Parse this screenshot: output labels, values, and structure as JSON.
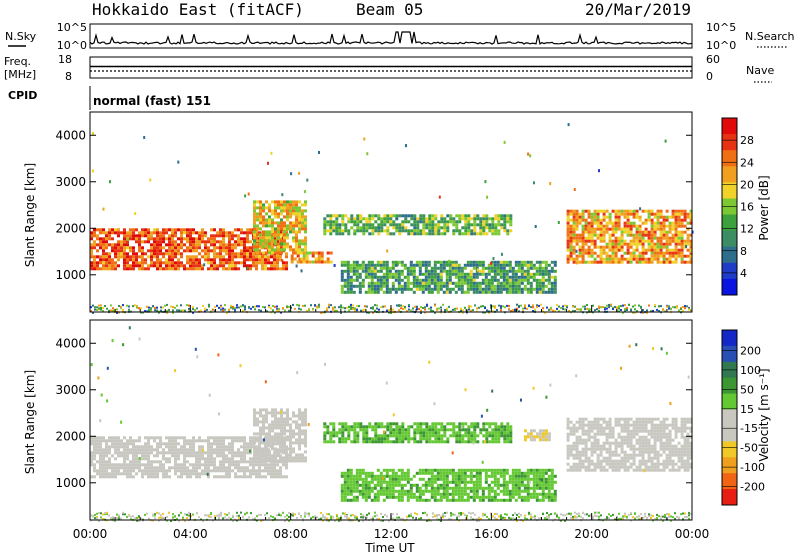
{
  "header": {
    "radar": "Hokkaido East (fitACF)",
    "beam": "Beam 05",
    "date": "20/Mar/2019"
  },
  "noise_panel": {
    "left_label": "N.Sky",
    "left_ticks": [
      "10^5",
      "10^0"
    ],
    "right_ticks": [
      "10^5",
      "10^0"
    ],
    "right_label": "N.Search"
  },
  "freq_panel": {
    "left_label_line1": "Freq.",
    "left_label_line2": "[MHz]",
    "left_ticks": [
      "18",
      "8"
    ],
    "right_ticks": [
      "60",
      "0"
    ],
    "right_label": "Nave"
  },
  "cpid": {
    "label": "CPID",
    "value": "normal (fast) 151"
  },
  "chart_data": [
    {
      "type": "heatmap",
      "title": "",
      "quantity": "Power",
      "ylabel": "Slant Range [km]",
      "yticks": [
        "1000",
        "2000",
        "3000",
        "4000"
      ],
      "ylim": [
        200,
        4500
      ],
      "xlim_hours": [
        0,
        24
      ],
      "colorbar": {
        "label": "Power [dB]",
        "ticks": [
          "4",
          "8",
          "12",
          "16",
          "20",
          "24",
          "28"
        ],
        "range": [
          0,
          32
        ],
        "colors": [
          "#0a14e0",
          "#1e3cc8",
          "#2d6e8c",
          "#3c8c64",
          "#3ca03c",
          "#7cc832",
          "#f0d228",
          "#f0a01e",
          "#f06e14",
          "#e83214",
          "#e00a0a"
        ]
      },
      "regions": [
        {
          "t0": 0.0,
          "t1": 7.8,
          "r0": 1150,
          "r1": 2000,
          "level": 26
        },
        {
          "t0": 6.5,
          "t1": 8.6,
          "r0": 1500,
          "r1": 2600,
          "level": 20
        },
        {
          "t0": 8.0,
          "t1": 9.6,
          "r0": 1300,
          "r1": 1500,
          "level": 22
        },
        {
          "t0": 9.3,
          "t1": 16.8,
          "r0": 1850,
          "r1": 2300,
          "level": 14
        },
        {
          "t0": 10.0,
          "t1": 18.5,
          "r0": 600,
          "r1": 1300,
          "level": 12
        },
        {
          "t0": 19.0,
          "t1": 24.0,
          "r0": 1300,
          "r1": 2400,
          "level": 22
        }
      ]
    },
    {
      "type": "heatmap",
      "title": "",
      "quantity": "Velocity",
      "ylabel": "Slant Range [km]",
      "yticks": [
        "1000",
        "2000",
        "3000",
        "4000"
      ],
      "ylim": [
        200,
        4500
      ],
      "xlim_hours": [
        0,
        24
      ],
      "xticks": [
        "00:00",
        "04:00",
        "08:00",
        "12:00",
        "16:00",
        "20:00",
        "00:00"
      ],
      "xlabel": "Time UT",
      "colorbar": {
        "label": "Velocity [m s⁻¹]",
        "ticks": [
          "200",
          "100",
          "50",
          "15",
          "-15",
          "-50",
          "-100",
          "-200"
        ],
        "range": [
          -250,
          250
        ],
        "colors": [
          "#1428c8",
          "#2850b4",
          "#327850",
          "#3c9632",
          "#64c832",
          "#c8c8c0",
          "#c8c8c0",
          "#f0c828",
          "#f0a01e",
          "#f06414",
          "#e81e14"
        ]
      },
      "regions": [
        {
          "t0": 0.0,
          "t1": 7.8,
          "r0": 1150,
          "r1": 2000,
          "level": 0
        },
        {
          "t0": 6.5,
          "t1": 8.6,
          "r0": 1500,
          "r1": 2600,
          "level": 0
        },
        {
          "t0": 9.3,
          "t1": 16.8,
          "r0": 1850,
          "r1": 2300,
          "level": 60
        },
        {
          "t0": 10.0,
          "t1": 18.5,
          "r0": 600,
          "r1": 1300,
          "level": 55
        },
        {
          "t0": 17.3,
          "t1": 18.3,
          "r0": 1950,
          "r1": 2150,
          "level": -60
        },
        {
          "t0": 19.0,
          "t1": 24.0,
          "r0": 1300,
          "r1": 2400,
          "level": 0
        }
      ]
    }
  ]
}
